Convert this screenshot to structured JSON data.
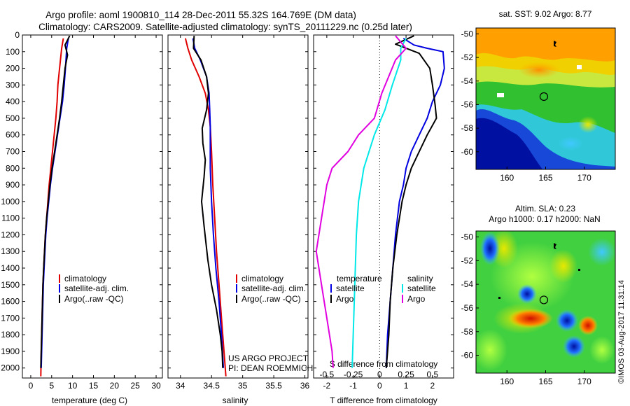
{
  "header": {
    "line1": "Argo profile: aoml 1900810_114 28-Dec-2011 55.32S 164.769E (DM data)",
    "line2": "Climatology: CARS2009. Satellite-adjusted climatology: synTS_20111229.nc (0.25d later)"
  },
  "depth_axis": {
    "ticks": [
      0,
      100,
      200,
      300,
      400,
      500,
      600,
      700,
      800,
      900,
      1000,
      1100,
      1200,
      1300,
      1400,
      1500,
      1600,
      1700,
      1800,
      1900,
      2000
    ],
    "ylim": [
      0,
      2060
    ]
  },
  "colors": {
    "climatology": "#e00000",
    "satellite": "#0000e0",
    "argo": "#000000",
    "salinity_satellite": "#00e8e8",
    "salinity_argo": "#e000e0"
  },
  "chart_data": [
    {
      "type": "line",
      "id": "temperature",
      "xlabel": "temperature (deg C)",
      "xticks": [
        0,
        5,
        10,
        15,
        20,
        25,
        30
      ],
      "xlim": [
        -2,
        31.5
      ],
      "legend": [
        "climatology",
        "satellite-adj. clim.",
        "Argo(..raw -QC)"
      ],
      "series": [
        {
          "name": "climatology",
          "color": "#e00000",
          "points": [
            [
              7.8,
              20
            ],
            [
              7.4,
              80
            ],
            [
              6.9,
              200
            ],
            [
              6.5,
              300
            ],
            [
              6.3,
              400
            ],
            [
              6.0,
              500
            ],
            [
              5.6,
              600
            ],
            [
              5.2,
              700
            ],
            [
              4.8,
              800
            ],
            [
              4.4,
              900
            ],
            [
              4.1,
              1000
            ],
            [
              3.8,
              1100
            ],
            [
              3.5,
              1200
            ],
            [
              3.3,
              1300
            ],
            [
              3.1,
              1400
            ],
            [
              2.9,
              1500
            ],
            [
              2.8,
              1600
            ],
            [
              2.7,
              1700
            ],
            [
              2.6,
              1800
            ],
            [
              2.5,
              1900
            ],
            [
              2.4,
              2050
            ]
          ]
        },
        {
          "name": "satellite-adj. clim.",
          "color": "#0000e0",
          "points": [
            [
              9.0,
              20
            ],
            [
              8.6,
              80
            ],
            [
              8.3,
              200
            ],
            [
              8.0,
              300
            ],
            [
              7.6,
              400
            ],
            [
              7.0,
              500
            ],
            [
              6.4,
              600
            ],
            [
              5.8,
              700
            ],
            [
              5.2,
              800
            ],
            [
              4.7,
              900
            ],
            [
              4.3,
              1000
            ],
            [
              3.9,
              1100
            ],
            [
              3.6,
              1200
            ],
            [
              3.4,
              1300
            ],
            [
              3.2,
              1400
            ],
            [
              3.0,
              1500
            ],
            [
              2.9,
              1600
            ],
            [
              2.8,
              1700
            ],
            [
              2.7,
              1800
            ],
            [
              2.6,
              1900
            ],
            [
              2.5,
              2000
            ]
          ]
        },
        {
          "name": "Argo(..raw -QC)",
          "color": "#000000",
          "points": [
            [
              9.3,
              5
            ],
            [
              8.2,
              60
            ],
            [
              8.8,
              120
            ],
            [
              8.2,
              200
            ],
            [
              7.8,
              300
            ],
            [
              7.4,
              400
            ],
            [
              6.9,
              500
            ],
            [
              6.3,
              600
            ],
            [
              5.7,
              700
            ],
            [
              5.1,
              800
            ],
            [
              4.6,
              900
            ],
            [
              4.2,
              1000
            ],
            [
              3.8,
              1100
            ],
            [
              3.5,
              1200
            ],
            [
              3.3,
              1300
            ],
            [
              3.1,
              1400
            ],
            [
              2.9,
              1500
            ],
            [
              2.8,
              1600
            ],
            [
              2.7,
              1700
            ],
            [
              2.6,
              1800
            ],
            [
              2.5,
              1900
            ],
            [
              2.4,
              2000
            ]
          ]
        }
      ]
    },
    {
      "type": "line",
      "id": "salinity",
      "xlabel": "salinity",
      "xticks": [
        34,
        34.5,
        35,
        35.5,
        36
      ],
      "xtick_labels": [
        "34",
        "34.5",
        "35",
        "35.5",
        "36"
      ],
      "xlim": [
        33.8,
        36.05
      ],
      "legend": [
        "climatology",
        "satellite-adj. clim.",
        "Argo(..raw -QC)"
      ],
      "annotation": [
        "US ARGO PROJECT",
        "PI: DEAN ROEMMICH"
      ],
      "series": [
        {
          "name": "climatology",
          "color": "#e00000",
          "points": [
            [
              34.08,
              20
            ],
            [
              34.12,
              80
            ],
            [
              34.18,
              150
            ],
            [
              34.3,
              250
            ],
            [
              34.4,
              350
            ],
            [
              34.45,
              450
            ],
            [
              34.48,
              550
            ],
            [
              34.5,
              700
            ],
            [
              34.52,
              900
            ],
            [
              34.55,
              1100
            ],
            [
              34.58,
              1300
            ],
            [
              34.62,
              1500
            ],
            [
              34.66,
              1700
            ],
            [
              34.7,
              1900
            ],
            [
              34.73,
              2050
            ]
          ]
        },
        {
          "name": "satellite-adj. clim.",
          "color": "#0000e0",
          "points": [
            [
              34.2,
              20
            ],
            [
              34.23,
              80
            ],
            [
              34.32,
              150
            ],
            [
              34.42,
              250
            ],
            [
              34.46,
              350
            ],
            [
              34.47,
              450
            ],
            [
              34.48,
              550
            ],
            [
              34.48,
              650
            ],
            [
              34.48,
              800
            ],
            [
              34.5,
              1000
            ],
            [
              34.53,
              1200
            ],
            [
              34.57,
              1400
            ],
            [
              34.62,
              1600
            ],
            [
              34.66,
              1800
            ],
            [
              34.69,
              2000
            ]
          ]
        },
        {
          "name": "Argo(..raw -QC)",
          "color": "#000000",
          "points": [
            [
              34.22,
              5
            ],
            [
              34.21,
              80
            ],
            [
              34.33,
              150
            ],
            [
              34.42,
              250
            ],
            [
              34.45,
              350
            ],
            [
              34.42,
              450
            ],
            [
              34.35,
              560
            ],
            [
              34.36,
              650
            ],
            [
              34.4,
              750
            ],
            [
              34.38,
              850
            ],
            [
              34.34,
              1000
            ],
            [
              34.38,
              1150
            ],
            [
              34.44,
              1350
            ],
            [
              34.5,
              1500
            ],
            [
              34.58,
              1650
            ],
            [
              34.64,
              1800
            ],
            [
              34.67,
              1900
            ],
            [
              34.68,
              2000
            ]
          ]
        }
      ]
    },
    {
      "type": "line",
      "id": "differences",
      "xlabel": "T difference from climatology",
      "xlabel_top": "S difference from climatology",
      "xticks": [
        -2,
        -1,
        0,
        1,
        2
      ],
      "xlim": [
        -2.5,
        2.8
      ],
      "s_ticks": [
        -0.5,
        -0.25,
        0,
        0.25,
        0.5
      ],
      "s_tick_labels": [
        "-0.5",
        "-0.25",
        "0",
        "0.25",
        "0.5"
      ],
      "legend_left": {
        "title": "temperature",
        "items": [
          "satellite",
          "Argo"
        ]
      },
      "legend_right": {
        "title": "salinity",
        "items": [
          "satellite",
          "Argo"
        ]
      },
      "series": [
        {
          "name": "temperature satellite",
          "color": "#0000e0",
          "points": [
            [
              0.9,
              20
            ],
            [
              1.3,
              60
            ],
            [
              1.8,
              80
            ],
            [
              2.4,
              100
            ],
            [
              2.45,
              200
            ],
            [
              2.3,
              300
            ],
            [
              2.0,
              400
            ],
            [
              1.8,
              500
            ],
            [
              1.5,
              600
            ],
            [
              1.2,
              700
            ],
            [
              1.0,
              800
            ],
            [
              0.9,
              900
            ],
            [
              0.75,
              1000
            ],
            [
              0.6,
              1200
            ],
            [
              0.5,
              1400
            ],
            [
              0.4,
              1600
            ],
            [
              0.3,
              1800
            ],
            [
              0.25,
              2000
            ]
          ]
        },
        {
          "name": "temperature Argo",
          "color": "#000000",
          "points": [
            [
              1.3,
              5
            ],
            [
              0.6,
              55
            ],
            [
              1.5,
              110
            ],
            [
              1.9,
              200
            ],
            [
              2.0,
              300
            ],
            [
              2.1,
              420
            ],
            [
              2.15,
              500
            ],
            [
              1.8,
              600
            ],
            [
              1.5,
              700
            ],
            [
              1.2,
              800
            ],
            [
              1.0,
              900
            ],
            [
              0.85,
              1000
            ],
            [
              0.65,
              1200
            ],
            [
              0.5,
              1400
            ],
            [
              0.4,
              1600
            ],
            [
              0.35,
              1800
            ],
            [
              0.3,
              1900
            ],
            [
              0.25,
              2000
            ]
          ]
        },
        {
          "name": "salinity satellite",
          "color": "#00e8e8",
          "points": [
            [
              0.25,
              20
            ],
            [
              0.2,
              80
            ],
            [
              0.2,
              150
            ],
            [
              0.12,
              300
            ],
            [
              0.05,
              450
            ],
            [
              -0.05,
              600
            ],
            [
              -0.15,
              800
            ],
            [
              -0.2,
              1000
            ],
            [
              -0.22,
              1200
            ],
            [
              -0.23,
              1400
            ],
            [
              -0.24,
              1600
            ],
            [
              -0.25,
              1800
            ],
            [
              -0.26,
              2000
            ]
          ]
        },
        {
          "name": "salinity Argo",
          "color": "#e000e0",
          "points": [
            [
              0.15,
              5
            ],
            [
              0.25,
              80
            ],
            [
              0.15,
              150
            ],
            [
              0.02,
              350
            ],
            [
              -0.05,
              500
            ],
            [
              -0.2,
              600
            ],
            [
              -0.3,
              700
            ],
            [
              -0.45,
              800
            ],
            [
              -0.5,
              900
            ],
            [
              -0.55,
              1100
            ],
            [
              -0.6,
              1300
            ],
            [
              -0.55,
              1500
            ],
            [
              -0.5,
              1700
            ],
            [
              -0.45,
              1900
            ],
            [
              -0.44,
              2000
            ]
          ]
        }
      ]
    }
  ],
  "maps": [
    {
      "id": "sst-map",
      "title": "sat. SST: 9.02 Argo: 8.77",
      "yticks": [
        -50,
        -52,
        -54,
        -56,
        -58,
        -60
      ],
      "xticks": [
        160,
        165,
        170
      ],
      "lon": [
        156,
        174
      ],
      "lat": [
        -49.5,
        -61.5
      ]
    },
    {
      "id": "sla-map",
      "title_line1": "Altim. SLA: 0.23",
      "title_line2": "Argo h1000: 0.17 h2000: NaN",
      "yticks": [
        -50,
        -52,
        -54,
        -56,
        -58,
        -60
      ],
      "xticks": [
        160,
        165,
        170
      ],
      "lon": [
        156,
        174
      ],
      "lat": [
        -49.5,
        -61.5
      ]
    }
  ],
  "float_position": {
    "lon": 164.769,
    "lat": -55.32
  },
  "credit": "©IMOS 03-Aug-2017 11:31:14"
}
